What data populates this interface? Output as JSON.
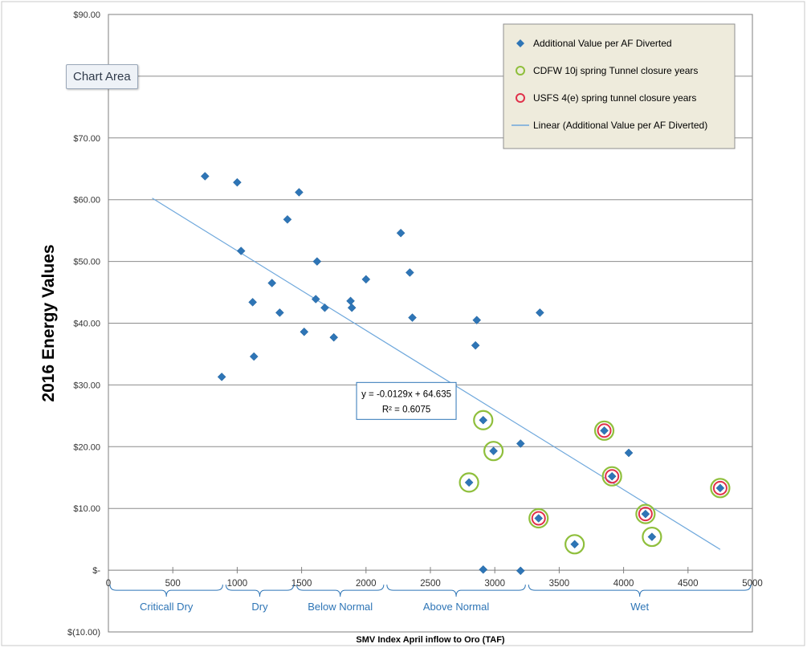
{
  "tooltip": "Chart Area",
  "chart_data": {
    "type": "scatter",
    "ylabel": "2016 Energy Values",
    "xlabel": "SMV Index April inflow to Oro (TAF)",
    "xlim": [
      0,
      5000
    ],
    "ylim": [
      -10,
      90
    ],
    "x_ticks": [
      0,
      500,
      1000,
      1500,
      2000,
      2500,
      3000,
      3500,
      4000,
      4500,
      5000
    ],
    "y_ticks": [
      {
        "value": 90,
        "label": "$90.00"
      },
      {
        "value": 80,
        "label": "$80.00"
      },
      {
        "value": 70,
        "label": "$70.00"
      },
      {
        "value": 60,
        "label": "$60.00"
      },
      {
        "value": 50,
        "label": "$50.00"
      },
      {
        "value": 40,
        "label": "$40.00"
      },
      {
        "value": 30,
        "label": "$30.00"
      },
      {
        "value": 20,
        "label": "$20.00"
      },
      {
        "value": 10,
        "label": "$10.00"
      },
      {
        "value": 0,
        "label": "$-"
      },
      {
        "value": -10,
        "label": "$(10.00)"
      }
    ],
    "grid": true,
    "legend_position": "top-right",
    "series": [
      {
        "name": "Additional Value per AF Diverted",
        "marker": "diamond",
        "color": "#2e75b6",
        "points": [
          [
            750,
            63.8
          ],
          [
            1000,
            62.8
          ],
          [
            1030,
            51.7
          ],
          [
            1480,
            61.2
          ],
          [
            1390,
            56.8
          ],
          [
            880,
            31.3
          ],
          [
            1120,
            43.4
          ],
          [
            1130,
            34.6
          ],
          [
            1270,
            46.5
          ],
          [
            1330,
            41.7
          ],
          [
            1520,
            38.6
          ],
          [
            1610,
            43.9
          ],
          [
            1620,
            50.0
          ],
          [
            1680,
            42.5
          ],
          [
            1750,
            37.7
          ],
          [
            1880,
            43.6
          ],
          [
            1890,
            42.5
          ],
          [
            2000,
            47.1
          ],
          [
            2270,
            54.6
          ],
          [
            2340,
            48.2
          ],
          [
            2360,
            40.9
          ],
          [
            2860,
            40.5
          ],
          [
            2850,
            36.4
          ],
          [
            3350,
            41.7
          ],
          [
            2910,
            24.3
          ],
          [
            2990,
            19.3
          ],
          [
            3200,
            20.5
          ],
          [
            2800,
            14.2
          ],
          [
            3340,
            8.4
          ],
          [
            3620,
            4.2
          ],
          [
            3850,
            22.6
          ],
          [
            3910,
            15.2
          ],
          [
            4040,
            19.0
          ],
          [
            4170,
            9.1
          ],
          [
            4220,
            5.4
          ],
          [
            4750,
            13.3
          ],
          [
            2910,
            0.1
          ],
          [
            3200,
            -0.1
          ]
        ]
      },
      {
        "name": "CDFW 10j spring Tunnel closure years",
        "marker": "circle-open",
        "color": "#8fbf3c",
        "points": [
          [
            2910,
            24.3
          ],
          [
            2990,
            19.3
          ],
          [
            2800,
            14.2
          ],
          [
            3340,
            8.4
          ],
          [
            3620,
            4.2
          ],
          [
            3850,
            22.6
          ],
          [
            3910,
            15.2
          ],
          [
            4170,
            9.1
          ],
          [
            4220,
            5.4
          ],
          [
            4750,
            13.3
          ]
        ]
      },
      {
        "name": "USFS 4(e) spring tunnel closure years",
        "marker": "circle-open",
        "color": "#e0304a",
        "points": [
          [
            3340,
            8.4
          ],
          [
            3850,
            22.6
          ],
          [
            3910,
            15.2
          ],
          [
            4170,
            9.1
          ],
          [
            4750,
            13.3
          ]
        ]
      },
      {
        "name": "Linear (Additional Value per AF Diverted)",
        "marker": "line",
        "color": "#6fa8dc",
        "x_range": [
          340,
          4750
        ],
        "slope": -0.0129,
        "intercept": 64.635
      }
    ],
    "annotation": {
      "lines": [
        "y = -0.0129x + 64.635",
        "R² = 0.6075"
      ],
      "anchor": [
        2600,
        26.5
      ]
    },
    "year_types": [
      {
        "label": "Criticall Dry",
        "start": 0,
        "end": 900
      },
      {
        "label": "Dry",
        "start": 900,
        "end": 1450
      },
      {
        "label": "Below Normal",
        "start": 1450,
        "end": 2150
      },
      {
        "label": "Above Normal",
        "start": 2150,
        "end": 3250
      },
      {
        "label": "Wet",
        "start": 3250,
        "end": 5000
      }
    ],
    "year_type_color": "#2e75b6"
  }
}
